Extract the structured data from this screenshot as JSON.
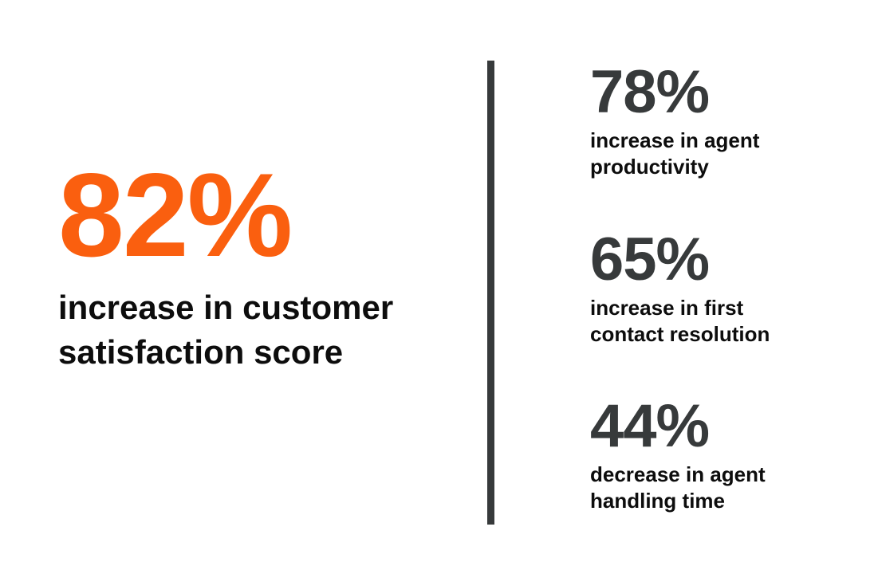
{
  "colors": {
    "accent_orange": "#FA5F0F",
    "dark_gray": "#373A3B",
    "text_black": "#0D0D0D",
    "background": "#FFFFFF"
  },
  "hero_stat": {
    "value": "82%",
    "label": "increase in customer satisfaction score"
  },
  "side_stats": [
    {
      "value": "78%",
      "label": "increase in agent productivity"
    },
    {
      "value": "65%",
      "label": "increase in first contact resolution"
    },
    {
      "value": "44%",
      "label": "decrease in agent handling time"
    }
  ],
  "chart_data": {
    "type": "table",
    "title": "",
    "stats": [
      {
        "value": 82,
        "unit": "%",
        "label": "increase in customer satisfaction score",
        "highlight": true,
        "color": "#FA5F0F"
      },
      {
        "value": 78,
        "unit": "%",
        "label": "increase in agent productivity",
        "highlight": false,
        "color": "#373A3B"
      },
      {
        "value": 65,
        "unit": "%",
        "label": "increase in first contact resolution",
        "highlight": false,
        "color": "#373A3B"
      },
      {
        "value": 44,
        "unit": "%",
        "label": "decrease in agent handling time",
        "highlight": false,
        "color": "#373A3B"
      }
    ],
    "layout": "hero stat left, vertical divider, three stats stacked right"
  }
}
